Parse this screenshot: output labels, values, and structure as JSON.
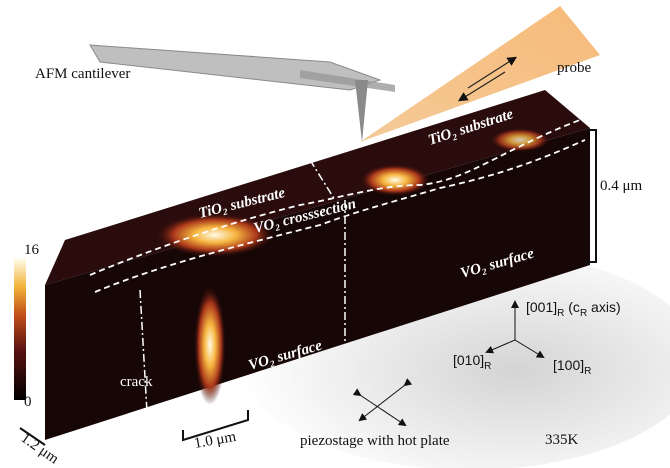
{
  "labels": {
    "cantilever": "AFM cantilever",
    "probe": "probe",
    "substrate_left": "TiO₂ substrate",
    "substrate_right": "TiO₂ substrate",
    "crosssection": "VO₂ crosssection",
    "surface_left": "VO₂ surface",
    "surface_right": "VO₂ surface",
    "crack": "crack",
    "stage": "piezostage with hot plate",
    "temperature": "335K"
  },
  "scale_bars": {
    "height": "0.4 μm",
    "length": "1.0 μm",
    "depth": "1.2 μm"
  },
  "colorbar": {
    "max": 16,
    "min": 0
  },
  "axes": {
    "c": {
      "main": "[001]",
      "sub": "R",
      "rest": " (c",
      "sub2": "R",
      "rest2": " axis)"
    },
    "a": {
      "main": "[010]",
      "sub": "R"
    },
    "b": {
      "main": "[100]",
      "sub": "R"
    }
  }
}
